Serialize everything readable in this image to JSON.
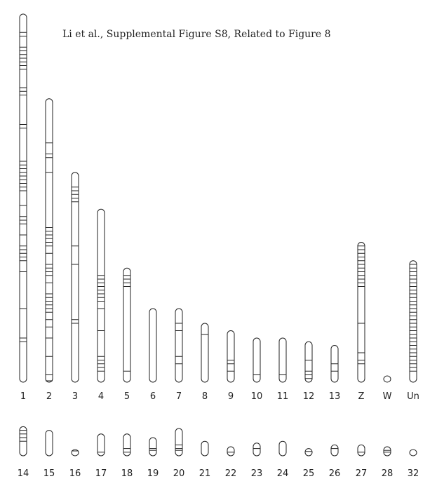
{
  "caption": "Li et al., Supplemental Figure S8, Related to Figure 8",
  "chart_data": {
    "type": "ideogram",
    "rows": [
      {
        "chromosomes": [
          {
            "label": "1",
            "length": 100,
            "bands": [
              5,
              6,
              9,
              10,
              11,
              12,
              13,
              14,
              15,
              20,
              21,
              22,
              30,
              31,
              40,
              41,
              42,
              43,
              44,
              45,
              46,
              47,
              48,
              52,
              55,
              56,
              57,
              60,
              63,
              64,
              65,
              66,
              67,
              70,
              80,
              88,
              89
            ]
          },
          {
            "label": "2",
            "length": 77,
            "bands": [
              12,
              15,
              16,
              20,
              35,
              36,
              37,
              38,
              39,
              40,
              42,
              45,
              46,
              47,
              48,
              50,
              53,
              54,
              55,
              56,
              57,
              58,
              60,
              62,
              65,
              70,
              75,
              78
            ]
          },
          {
            "label": "3",
            "length": 57,
            "bands": [
              4,
              5,
              6,
              7,
              8,
              20,
              25,
              40,
              41
            ]
          },
          {
            "label": "4",
            "length": 47,
            "bands": [
              18,
              19,
              20,
              21,
              22,
              23,
              24,
              25,
              27,
              33,
              40,
              41,
              42,
              43,
              44
            ]
          },
          {
            "label": "5",
            "length": 31,
            "bands": [
              2,
              3,
              4,
              5,
              28
            ]
          },
          {
            "label": "6",
            "length": 20,
            "bands": []
          },
          {
            "label": "7",
            "length": 20,
            "bands": [
              4,
              6,
              13,
              15
            ]
          },
          {
            "label": "8",
            "length": 16,
            "bands": [
              3
            ]
          },
          {
            "label": "9",
            "length": 14,
            "bands": [
              8,
              9,
              11
            ]
          },
          {
            "label": "10",
            "length": 12,
            "bands": [
              10
            ]
          },
          {
            "label": "11",
            "length": 12,
            "bands": [
              10
            ]
          },
          {
            "label": "12",
            "length": 11,
            "bands": [
              5,
              8,
              9,
              10
            ]
          },
          {
            "label": "13",
            "length": 10,
            "bands": [
              5,
              7
            ]
          },
          {
            "label": "Z",
            "length": 38,
            "bands": [
              1,
              2,
              3,
              4,
              5,
              6,
              7,
              8,
              9,
              10,
              11,
              12,
              22,
              30,
              32,
              33
            ]
          },
          {
            "label": "W",
            "length": 0,
            "bands": []
          },
          {
            "label": "Un",
            "length": 33,
            "bands": [
              1,
              2,
              3,
              4,
              5,
              6,
              7,
              8,
              9,
              10,
              11,
              12,
              13,
              14,
              15,
              16,
              17,
              18,
              19,
              20,
              21,
              22,
              23,
              24,
              25,
              26,
              27,
              28,
              29,
              30
            ]
          }
        ]
      },
      {
        "chromosomes": [
          {
            "label": "14",
            "length": 8,
            "bands": [
              1,
              2,
              3,
              4
            ]
          },
          {
            "label": "15",
            "length": 7,
            "bands": []
          },
          {
            "label": "16",
            "length": 0.5,
            "bands": [
              0.2
            ]
          },
          {
            "label": "17",
            "length": 6,
            "bands": [
              5
            ]
          },
          {
            "label": "18",
            "length": 6,
            "bands": [
              4,
              5
            ]
          },
          {
            "label": "19",
            "length": 5,
            "bands": [
              3,
              3.5
            ]
          },
          {
            "label": "20",
            "length": 7.5,
            "bands": [
              4.5,
              5.5,
              6
            ]
          },
          {
            "label": "21",
            "length": 4,
            "bands": []
          },
          {
            "label": "22",
            "length": 2.5,
            "bands": [
              1.5
            ]
          },
          {
            "label": "23",
            "length": 3.5,
            "bands": [
              1.5
            ]
          },
          {
            "label": "24",
            "length": 4,
            "bands": []
          },
          {
            "label": "25",
            "length": 2,
            "bands": [
              0.8
            ]
          },
          {
            "label": "26",
            "length": 3,
            "bands": [
              1
            ]
          },
          {
            "label": "27",
            "length": 3,
            "bands": [
              2
            ]
          },
          {
            "label": "28",
            "length": 2.5,
            "bands": [
              1,
              1.5
            ]
          },
          {
            "label": "32",
            "length": 0,
            "bands": []
          }
        ]
      }
    ]
  }
}
